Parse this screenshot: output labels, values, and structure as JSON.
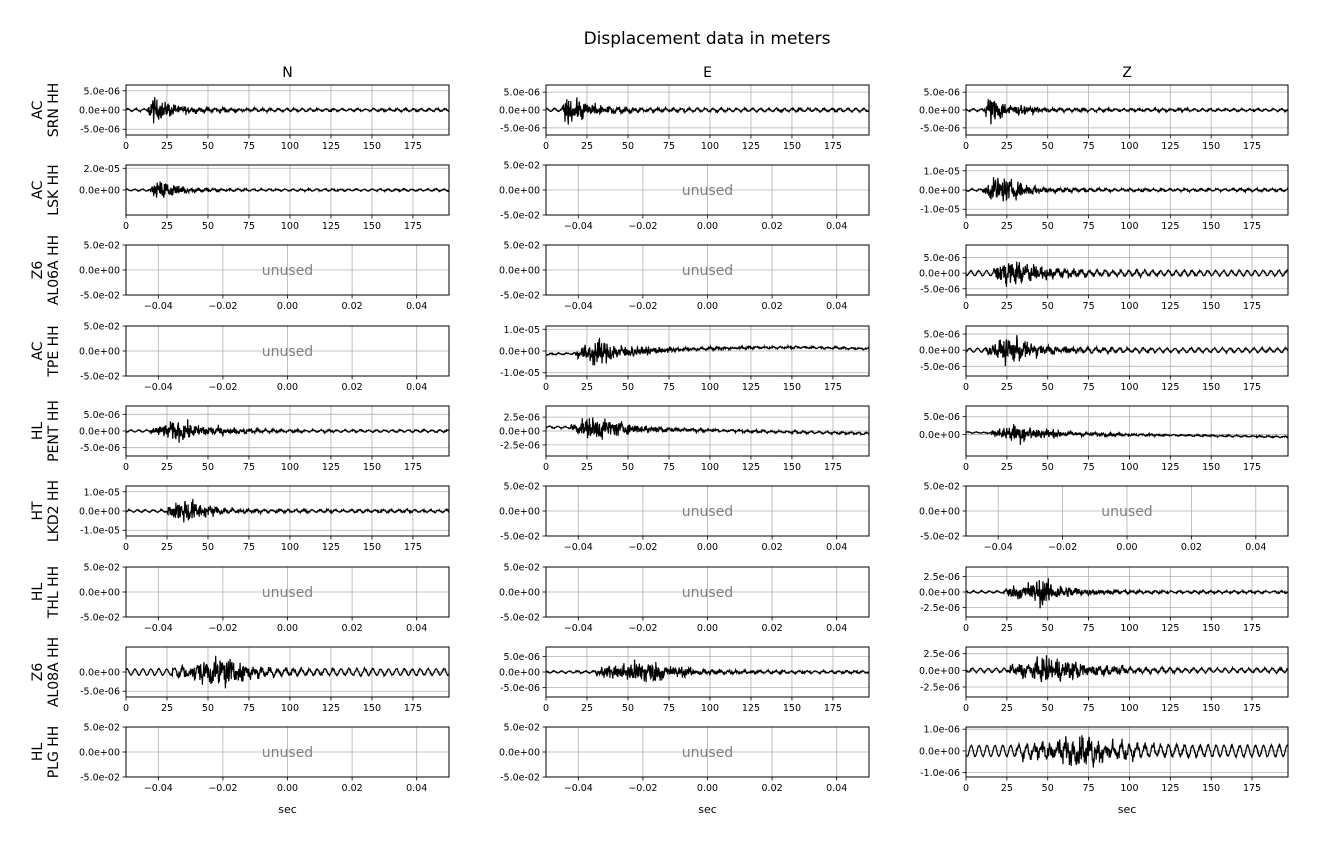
{
  "figure": {
    "title": "Displacement data in meters",
    "columns": [
      "N",
      "E",
      "Z"
    ],
    "xlabel": "sec",
    "unused_text": "unused"
  },
  "chart_data": {
    "type": "line",
    "x_ticks_used": [
      0,
      25,
      50,
      75,
      100,
      125,
      150,
      175
    ],
    "x_range_used": [
      0,
      197
    ],
    "x_ticks_unused": [
      "−0.04",
      "−0.02",
      "0.00",
      "0.02",
      "0.04"
    ],
    "x_range_unused": [
      -0.05,
      0.05
    ],
    "y_ticks_unused": [
      "5.0e-02",
      "0.0e+00",
      "-5.0e-02"
    ],
    "stations": [
      {
        "label_top": "AC",
        "label_bottom": "SRN HH"
      },
      {
        "label_top": "AC",
        "label_bottom": "LSK HH"
      },
      {
        "label_top": "Z6",
        "label_bottom": "AL06A HH"
      },
      {
        "label_top": "AC",
        "label_bottom": "TPE HH"
      },
      {
        "label_top": "HL",
        "label_bottom": "PENT HH"
      },
      {
        "label_top": "HT",
        "label_bottom": "LKD2 HH"
      },
      {
        "label_top": "HL",
        "label_bottom": "THL HH"
      },
      {
        "label_top": "Z6",
        "label_bottom": "AL08A HH"
      },
      {
        "label_top": "HL",
        "label_bottom": "PLG HH"
      }
    ],
    "panels": [
      [
        {
          "used": true,
          "ylim": [
            -6.5e-06,
            6.5e-06
          ],
          "yticks": [
            [
              "5.0e-06",
              5e-06
            ],
            [
              "0.0e+00",
              0
            ],
            [
              "-5.0e-06",
              -5e-06
            ]
          ],
          "onset": 13,
          "peak_t": 16,
          "amp": 6.2e-06,
          "decay": 14,
          "noise": 3e-07,
          "drift": 0
        },
        {
          "used": true,
          "ylim": [
            -2.3e-05,
            2.3e-05
          ],
          "yticks": [
            [
              "2.0e-05",
              2e-05
            ],
            [
              "0.0e+00",
              0
            ]
          ],
          "onset": 15,
          "peak_t": 22,
          "amp": 1.6e-05,
          "decay": 12,
          "noise": 8e-07,
          "drift": 0
        },
        {
          "used": false
        },
        {
          "used": false
        },
        {
          "used": true,
          "ylim": [
            -7.5e-06,
            7.5e-06
          ],
          "yticks": [
            [
              "5.0e-06",
              5e-06
            ],
            [
              "0.0e+00",
              0
            ],
            [
              "-5.0e-06",
              -5e-06
            ]
          ],
          "onset": 15,
          "peak_t": 32,
          "amp": 5.5e-06,
          "decay": 22,
          "noise": 3e-07,
          "drift": 0
        },
        {
          "used": true,
          "ylim": [
            -1.3e-05,
            1.3e-05
          ],
          "yticks": [
            [
              "1.0e-05",
              1e-05
            ],
            [
              "0.0e+00",
              0
            ],
            [
              "-1.0e-05",
              -1e-05
            ]
          ],
          "onset": 25,
          "peak_t": 36,
          "amp": 1.25e-05,
          "decay": 14,
          "noise": 6e-07,
          "drift": 0
        },
        {
          "used": false
        },
        {
          "used": true,
          "ylim": [
            -6.5e-06,
            6.5e-06
          ],
          "yticks": [
            [
              "0.0e+00",
              0
            ],
            [
              "-5.0e-06",
              -5e-06
            ]
          ],
          "onset": 28,
          "peak_t": 60,
          "amp": 6.5e-06,
          "decay": 18,
          "noise": 8e-07,
          "drift": 0
        },
        {
          "used": false
        }
      ],
      [
        {
          "used": true,
          "ylim": [
            -7e-06,
            7e-06
          ],
          "yticks": [
            [
              "5.0e-06",
              5e-06
            ],
            [
              "0.0e+00",
              0
            ],
            [
              "-5.0e-06",
              -5e-06
            ]
          ],
          "onset": 10,
          "peak_t": 13,
          "amp": 6.8e-06,
          "decay": 16,
          "noise": 4e-07,
          "drift": 0
        },
        {
          "used": false
        },
        {
          "used": false
        },
        {
          "used": true,
          "ylim": [
            -1.15e-05,
            1.15e-05
          ],
          "yticks": [
            [
              "1.0e-05",
              1e-05
            ],
            [
              "0.0e+00",
              0
            ],
            [
              "-1.0e-05",
              -1e-05
            ]
          ],
          "onset": 18,
          "peak_t": 30,
          "amp": 1.1e-05,
          "decay": 22,
          "noise": 3e-07,
          "drift": 1
        },
        {
          "used": true,
          "ylim": [
            -4.5e-06,
            4.5e-06
          ],
          "yticks": [
            [
              "2.5e-06",
              2.5e-06
            ],
            [
              "0.0e+00",
              0
            ],
            [
              "-2.5e-06",
              -2.5e-06
            ]
          ],
          "onset": 15,
          "peak_t": 30,
          "amp": 4e-06,
          "decay": 22,
          "noise": 1.5e-07,
          "drift": 2
        },
        {
          "used": false
        },
        {
          "used": false
        },
        {
          "used": true,
          "ylim": [
            -8e-06,
            8e-06
          ],
          "yticks": [
            [
              "5.0e-06",
              5e-06
            ],
            [
              "0.0e+00",
              0
            ],
            [
              "-5.0e-06",
              -5e-06
            ]
          ],
          "onset": 30,
          "peak_t": 60,
          "amp": 7.5e-06,
          "decay": 20,
          "noise": 3e-07,
          "drift": 0
        },
        {
          "used": false
        }
      ],
      [
        {
          "used": true,
          "ylim": [
            -7e-06,
            7e-06
          ],
          "yticks": [
            [
              "5.0e-06",
              5e-06
            ],
            [
              "0.0e+00",
              0
            ],
            [
              "-5.0e-06",
              -5e-06
            ]
          ],
          "onset": 11,
          "peak_t": 15,
          "amp": 7e-06,
          "decay": 14,
          "noise": 3e-07,
          "drift": 0
        },
        {
          "used": true,
          "ylim": [
            -1.3e-05,
            1.3e-05
          ],
          "yticks": [
            [
              "1.0e-05",
              1e-05
            ],
            [
              "0.0e+00",
              0
            ],
            [
              "-1.0e-05",
              -1e-05
            ]
          ],
          "onset": 10,
          "peak_t": 20,
          "amp": 1.3e-05,
          "decay": 16,
          "noise": 5e-07,
          "drift": 0
        },
        {
          "used": true,
          "ylim": [
            -7e-06,
            9e-06
          ],
          "yticks": [
            [
              "5.0e-06",
              5e-06
            ],
            [
              "0.0e+00",
              0
            ],
            [
              "-5.0e-06",
              -5e-06
            ]
          ],
          "onset": 17,
          "peak_t": 25,
          "amp": 7.5e-06,
          "decay": 25,
          "noise": 8e-07,
          "drift": 0
        },
        {
          "used": true,
          "ylim": [
            -8e-06,
            7.5e-06
          ],
          "yticks": [
            [
              "5.0e-06",
              5e-06
            ],
            [
              "0.0e+00",
              0
            ],
            [
              "-5.0e-06",
              -5e-06
            ]
          ],
          "onset": 12,
          "peak_t": 27,
          "amp": 7e-06,
          "decay": 20,
          "noise": 6e-07,
          "drift": 0
        },
        {
          "used": true,
          "ylim": [
            -6e-06,
            8e-06
          ],
          "yticks": [
            [
              "5.0e-06",
              5e-06
            ],
            [
              "0.0e+00",
              0
            ]
          ],
          "onset": 15,
          "peak_t": 32,
          "amp": 5e-06,
          "decay": 22,
          "noise": 1.5e-07,
          "drift": 3
        },
        {
          "used": false
        },
        {
          "used": true,
          "ylim": [
            -4e-06,
            4e-06
          ],
          "yticks": [
            [
              "2.5e-06",
              2.5e-06
            ],
            [
              "0.0e+00",
              0
            ],
            [
              "-2.5e-06",
              -2.5e-06
            ]
          ],
          "onset": 23,
          "peak_t": 47,
          "amp": 3.8e-06,
          "decay": 16,
          "noise": 1.5e-07,
          "drift": 0
        },
        {
          "used": true,
          "ylim": [
            -4e-06,
            3.5e-06
          ],
          "yticks": [
            [
              "2.5e-06",
              2.5e-06
            ],
            [
              "0.0e+00",
              0
            ],
            [
              "-2.5e-06",
              -2.5e-06
            ]
          ],
          "onset": 25,
          "peak_t": 55,
          "amp": 3.5e-06,
          "decay": 22,
          "noise": 3e-07,
          "drift": 0
        },
        {
          "used": true,
          "ylim": [
            -1.2e-06,
            1.1e-06
          ],
          "yticks": [
            [
              "1.0e-06",
              1e-06
            ],
            [
              "0.0e+00",
              0
            ],
            [
              "-1.0e-06",
              -1e-06
            ]
          ],
          "onset": 30,
          "peak_t": 75,
          "amp": 1.1e-06,
          "decay": 25,
          "noise": 2.5e-07,
          "drift": 0
        }
      ]
    ]
  }
}
